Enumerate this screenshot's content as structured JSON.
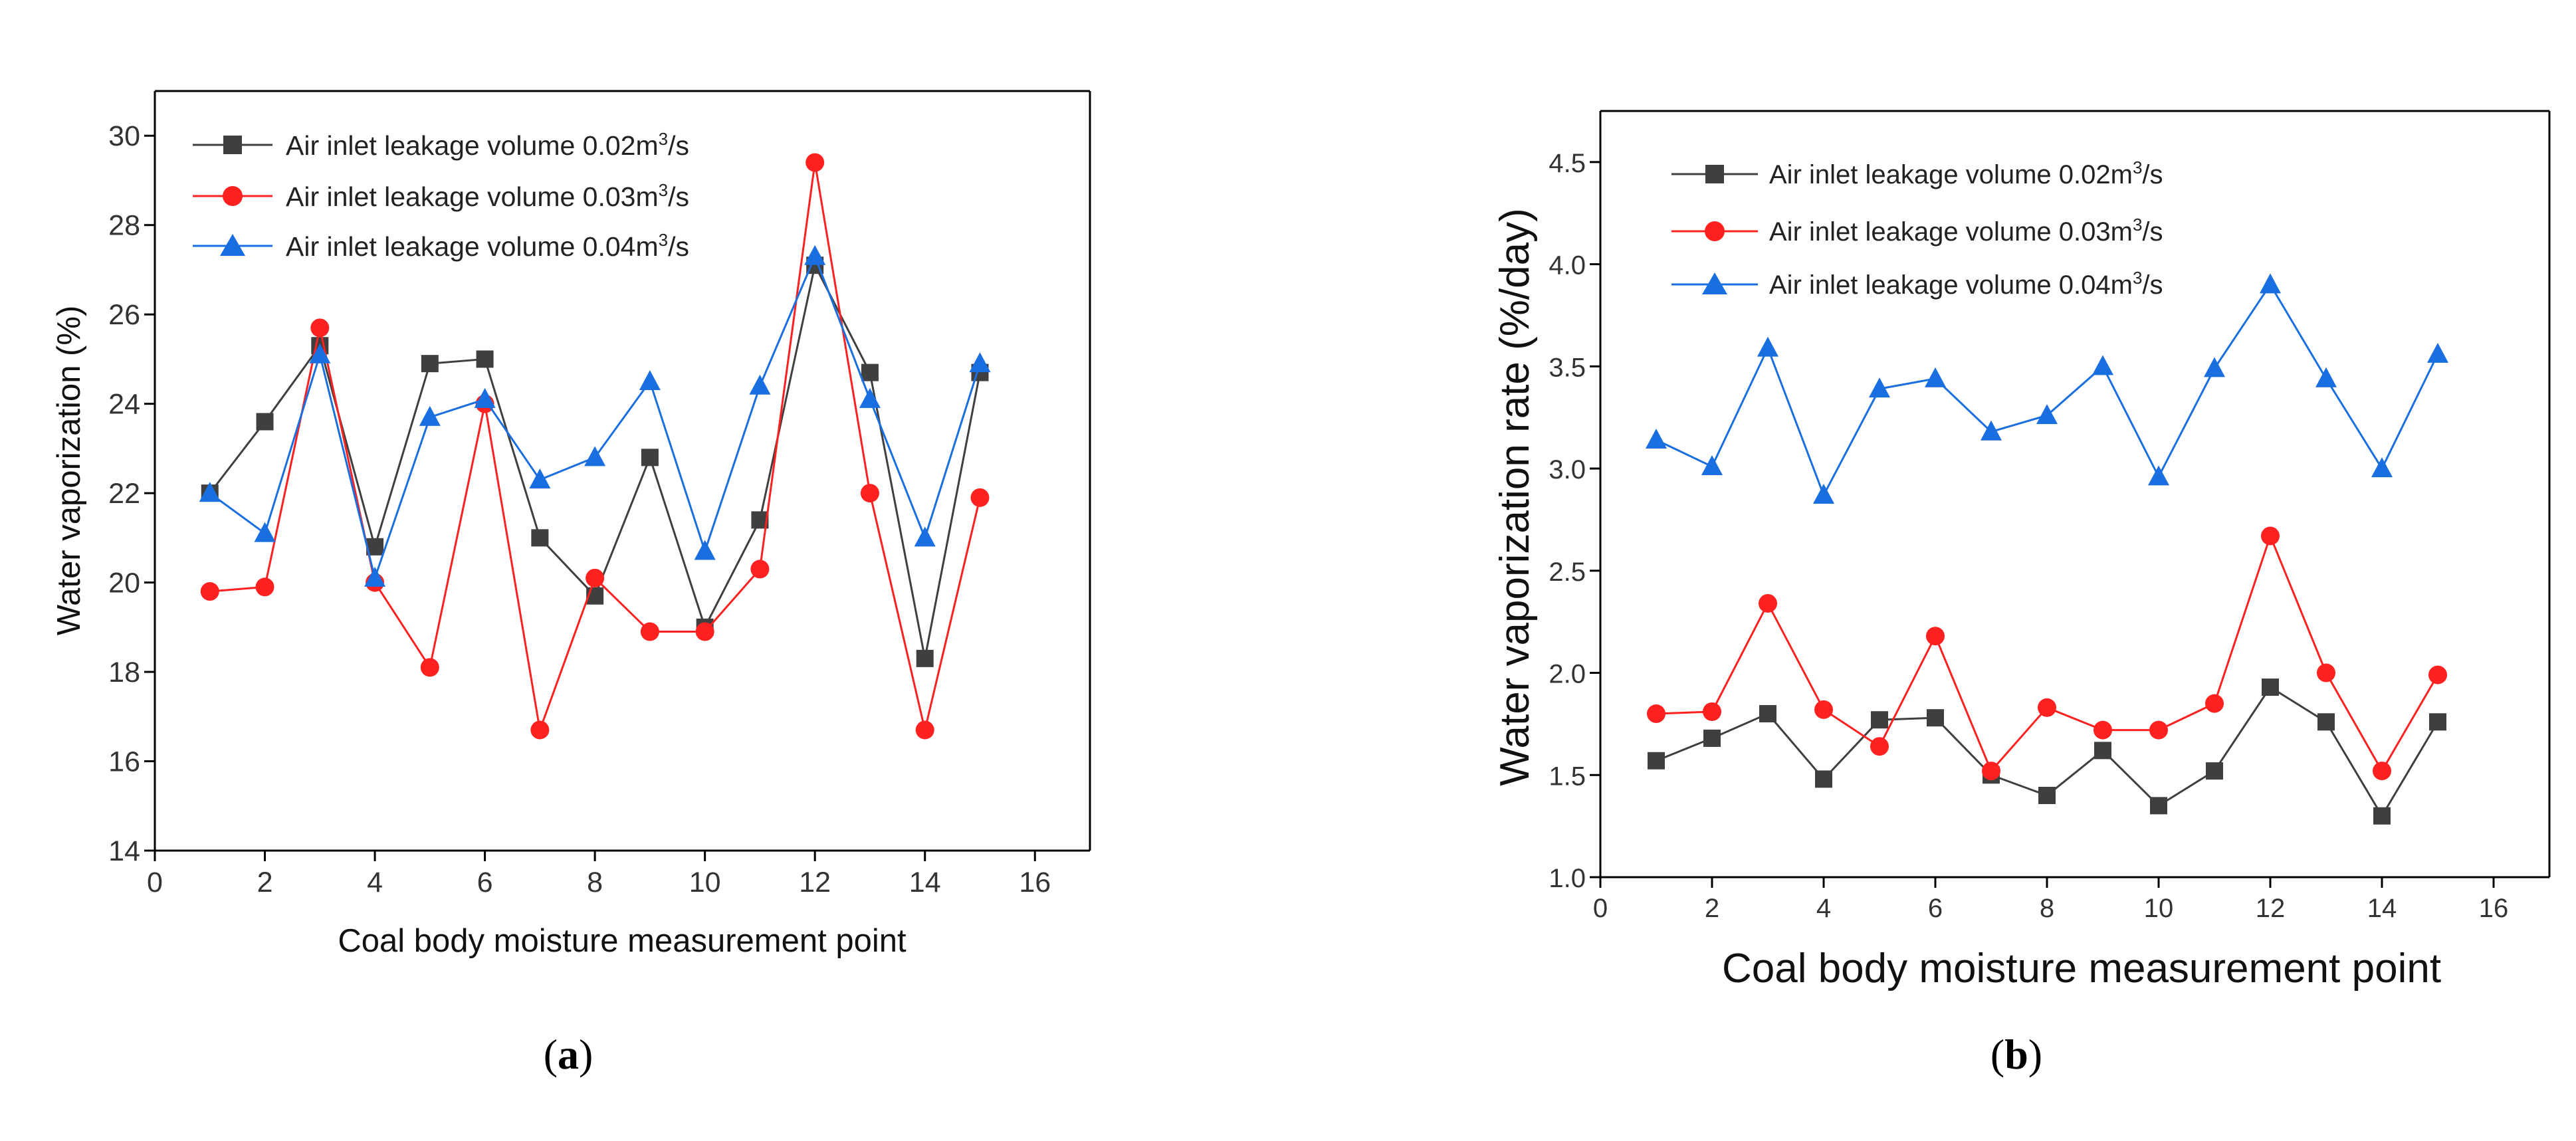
{
  "colors": {
    "series1": "#3f3f3f",
    "series2": "#ff2020",
    "series3": "#1a6fe0"
  },
  "chart_data": [
    {
      "type": "line",
      "panel": "a",
      "panel_label": {
        "open": "(",
        "letter": "a",
        "close": ")"
      },
      "xlabel": "Coal body moisture measurement point",
      "ylabel": "Water vaporization (%)",
      "xlim": [
        0,
        17
      ],
      "ylim": [
        14,
        31
      ],
      "xticks": [
        "0",
        "2",
        "4",
        "6",
        "8",
        "10",
        "12",
        "14",
        "16"
      ],
      "yticks": [
        "14",
        "16",
        "18",
        "20",
        "22",
        "24",
        "26",
        "28",
        "30"
      ],
      "x": [
        1,
        2,
        3,
        4,
        5,
        6,
        7,
        8,
        9,
        10,
        11,
        12,
        13,
        14,
        15
      ],
      "legend_position": "top-left",
      "series": [
        {
          "name_prefix": "Air inlet leakage volume 0.02m",
          "name_sup": "3",
          "name_suffix": "/s",
          "marker": "square",
          "values": [
            22.0,
            23.6,
            25.3,
            20.8,
            24.9,
            25.0,
            21.0,
            19.7,
            22.8,
            19.0,
            21.4,
            27.1,
            24.7,
            18.3,
            24.7
          ]
        },
        {
          "name_prefix": "Air inlet leakage volume 0.03m",
          "name_sup": "3",
          "name_suffix": "/s",
          "marker": "circle",
          "values": [
            19.8,
            19.9,
            25.7,
            20.0,
            18.1,
            24.0,
            16.7,
            20.1,
            18.9,
            18.9,
            20.3,
            29.4,
            22.0,
            16.7,
            21.9
          ]
        },
        {
          "name_prefix": "Air inlet leakage volume 0.04m",
          "name_sup": "3",
          "name_suffix": "/s",
          "marker": "triangle",
          "values": [
            22.0,
            21.1,
            25.1,
            20.1,
            23.7,
            24.1,
            22.3,
            22.8,
            24.5,
            20.7,
            24.4,
            27.3,
            24.1,
            21.0,
            24.9
          ]
        }
      ]
    },
    {
      "type": "line",
      "panel": "b",
      "panel_label": {
        "open": "(",
        "letter": "b",
        "close": ")"
      },
      "xlabel": "Coal body moisture measurement point",
      "ylabel": "Water vaporization rate (%/day)",
      "xlim": [
        0,
        17
      ],
      "ylim": [
        1.0,
        4.75
      ],
      "xticks": [
        "0",
        "2",
        "4",
        "6",
        "8",
        "10",
        "12",
        "14",
        "16"
      ],
      "yticks": [
        "1.0",
        "1.5",
        "2.0",
        "2.5",
        "3.0",
        "3.5",
        "4.0",
        "4.5"
      ],
      "x": [
        1,
        2,
        3,
        4,
        5,
        6,
        7,
        8,
        9,
        10,
        11,
        12,
        13,
        14,
        15
      ],
      "legend_position": "top-left",
      "series": [
        {
          "name_prefix": "Air inlet leakage volume 0.02m",
          "name_sup": "3",
          "name_suffix": "/s",
          "marker": "square",
          "values": [
            1.57,
            1.68,
            1.8,
            1.48,
            1.77,
            1.78,
            1.5,
            1.4,
            1.62,
            1.35,
            1.52,
            1.93,
            1.76,
            1.3,
            1.76
          ]
        },
        {
          "name_prefix": "Air inlet leakage volume 0.03m",
          "name_sup": "3",
          "name_suffix": "/s",
          "marker": "circle",
          "values": [
            1.8,
            1.81,
            2.34,
            1.82,
            1.64,
            2.18,
            1.52,
            1.83,
            1.72,
            1.72,
            1.85,
            2.67,
            2.0,
            1.52,
            1.99
          ]
        },
        {
          "name_prefix": "Air inlet leakage volume 0.04m",
          "name_sup": "3",
          "name_suffix": "/s",
          "marker": "triangle",
          "values": [
            3.14,
            3.01,
            3.59,
            2.87,
            3.39,
            3.44,
            3.18,
            3.26,
            3.5,
            2.96,
            3.49,
            3.9,
            3.44,
            3.0,
            3.56
          ]
        }
      ]
    }
  ]
}
